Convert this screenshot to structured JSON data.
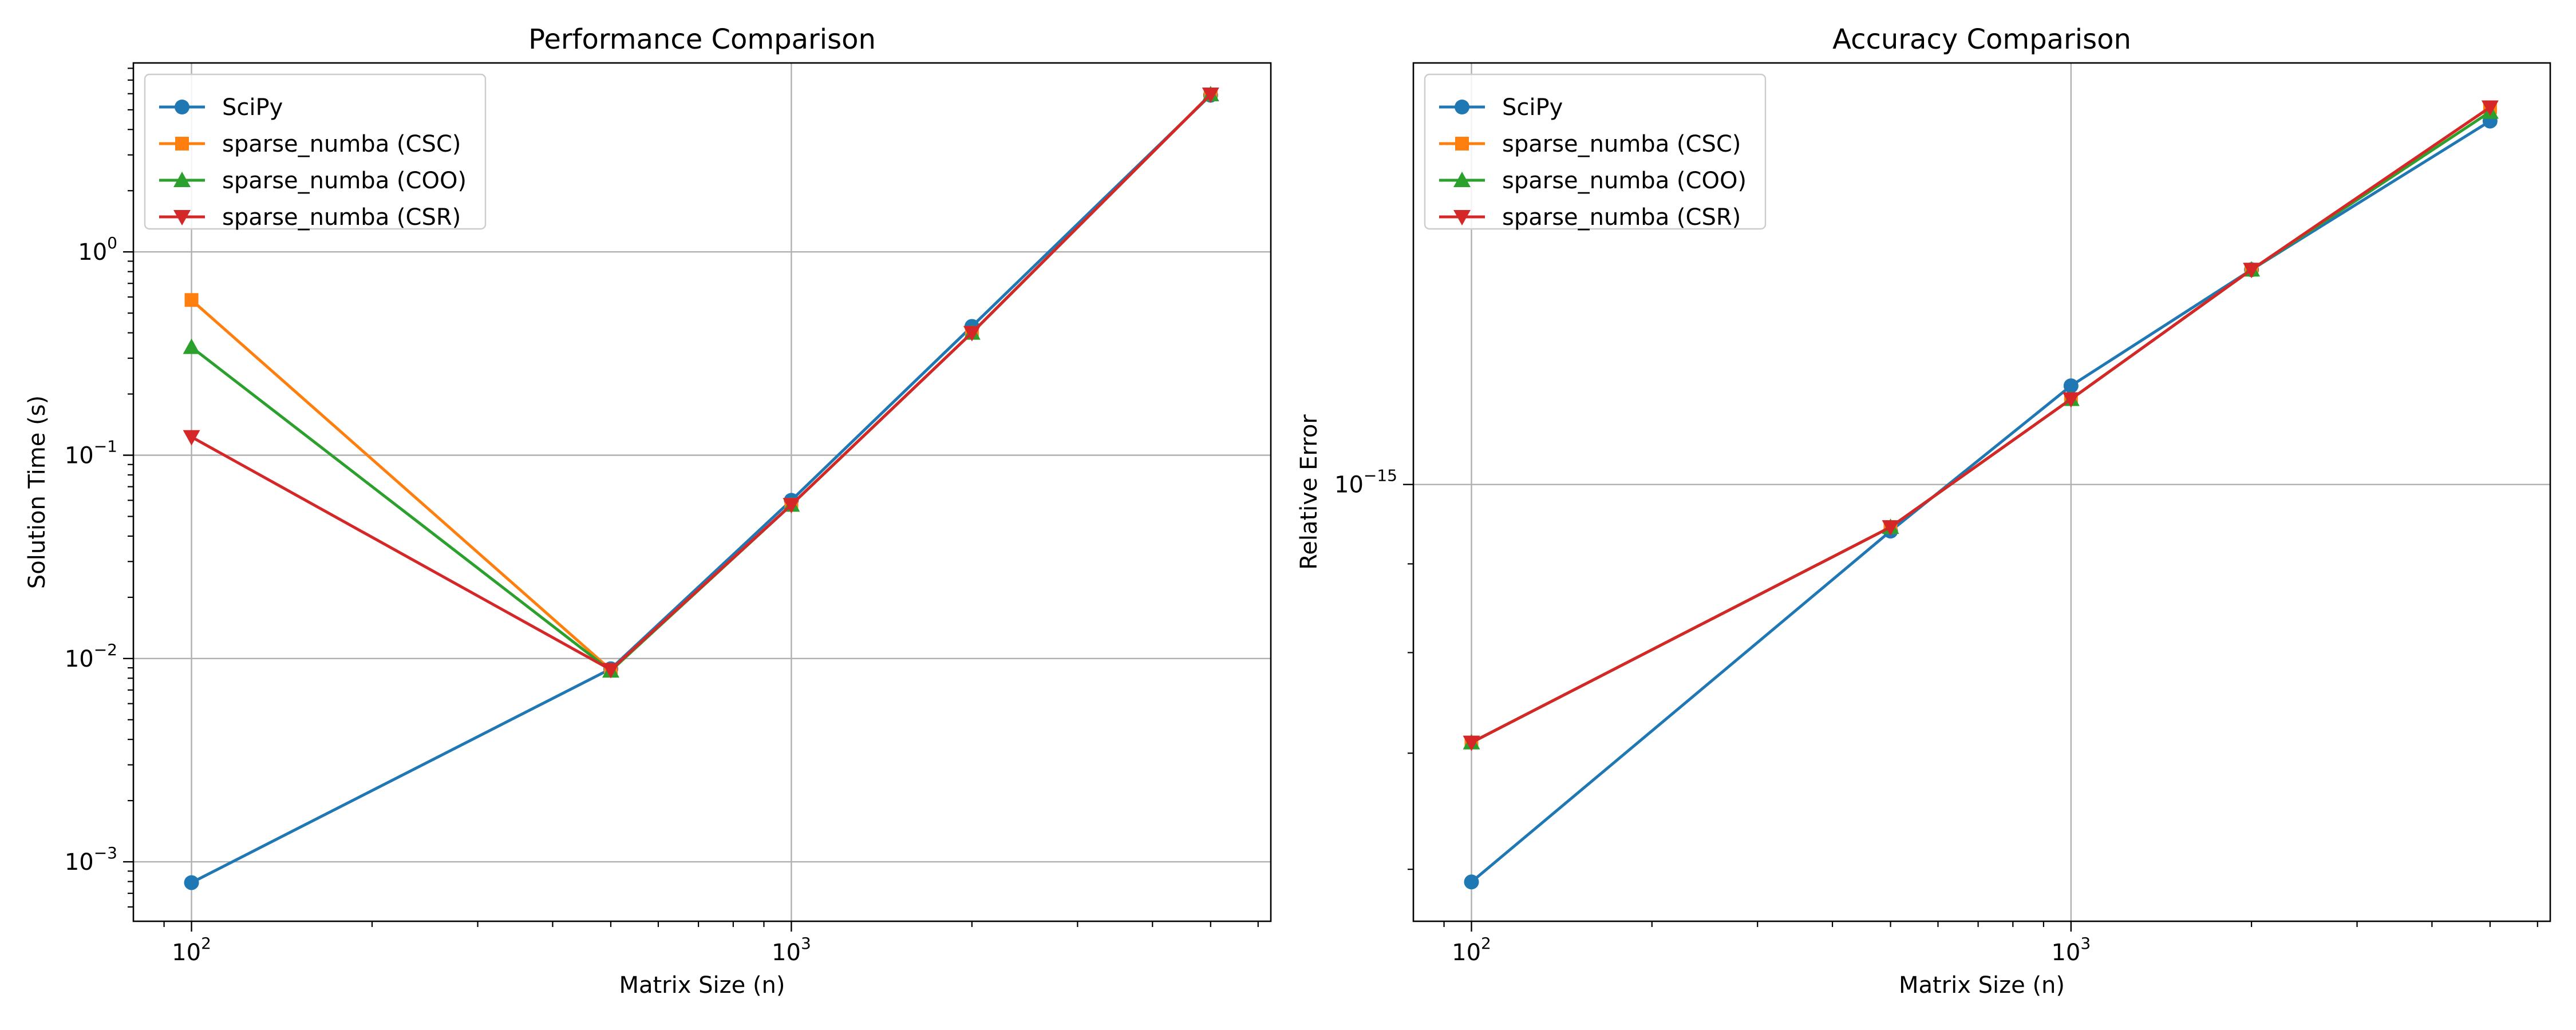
{
  "chart_data": [
    {
      "type": "line",
      "title": "Performance Comparison",
      "xlabel": "Matrix Size (n)",
      "ylabel": "Solution Time (s)",
      "xscale": "log",
      "yscale": "log",
      "xlim": [
        80,
        6300
      ],
      "ylim": [
        0.00051,
        8.5
      ],
      "x": [
        100,
        500,
        1000,
        2000,
        5000
      ],
      "x_ticks": [
        {
          "value": 100,
          "base": "10",
          "exp": "2"
        },
        {
          "value": 1000,
          "base": "10",
          "exp": "3"
        }
      ],
      "y_ticks": [
        {
          "value": 0.001,
          "base": "10",
          "exp": "−3"
        },
        {
          "value": 0.01,
          "base": "10",
          "exp": "−2"
        },
        {
          "value": 0.1,
          "base": "10",
          "exp": "−1"
        },
        {
          "value": 1,
          "base": "10",
          "exp": "0"
        }
      ],
      "grid": true,
      "legend_position": "top-left",
      "series": [
        {
          "name": "SciPy",
          "color": "#1f77b4",
          "marker": "circle",
          "values": [
            0.00079,
            0.0089,
            0.06,
            0.43,
            5.9
          ]
        },
        {
          "name": "sparse_numba (CSC)",
          "color": "#ff7f0e",
          "marker": "square",
          "values": [
            0.58,
            0.0088,
            0.057,
            0.4,
            5.95
          ]
        },
        {
          "name": "sparse_numba (COO)",
          "color": "#2ca02c",
          "marker": "triangle-up",
          "values": [
            0.34,
            0.0087,
            0.057,
            0.4,
            5.95
          ]
        },
        {
          "name": "sparse_numba (CSR)",
          "color": "#d62728",
          "marker": "triangle-down",
          "values": [
            0.123,
            0.0088,
            0.057,
            0.4,
            5.95
          ]
        }
      ]
    },
    {
      "type": "line",
      "title": "Accuracy Comparison",
      "xlabel": "Matrix Size (n)",
      "ylabel": "Relative Error",
      "xscale": "log",
      "yscale": "log",
      "xlim": [
        80,
        6300
      ],
      "ylim": [
        5.6e-16,
        1.75e-15
      ],
      "x": [
        100,
        500,
        1000,
        2000,
        5000
      ],
      "x_ticks": [
        {
          "value": 100,
          "base": "10",
          "exp": "2"
        },
        {
          "value": 1000,
          "base": "10",
          "exp": "3"
        }
      ],
      "y_ticks": [
        {
          "value": 1e-15,
          "base": "10",
          "exp": "−15"
        }
      ],
      "grid": true,
      "legend_position": "top-left",
      "series": [
        {
          "name": "SciPy",
          "color": "#1f77b4",
          "marker": "circle",
          "values": [
            5.9e-16,
            9.4e-16,
            1.14e-15,
            1.33e-15,
            1.62e-15
          ]
        },
        {
          "name": "sparse_numba (CSC)",
          "color": "#ff7f0e",
          "marker": "square",
          "values": [
            7.1e-16,
            9.45e-16,
            1.12e-15,
            1.33e-15,
            1.65e-15
          ]
        },
        {
          "name": "sparse_numba (COO)",
          "color": "#2ca02c",
          "marker": "triangle-up",
          "values": [
            7.1e-16,
            9.45e-16,
            1.12e-15,
            1.33e-15,
            1.64e-15
          ]
        },
        {
          "name": "sparse_numba (CSR)",
          "color": "#d62728",
          "marker": "triangle-down",
          "values": [
            7.1e-16,
            9.45e-16,
            1.12e-15,
            1.33e-15,
            1.65e-15
          ]
        }
      ]
    }
  ]
}
